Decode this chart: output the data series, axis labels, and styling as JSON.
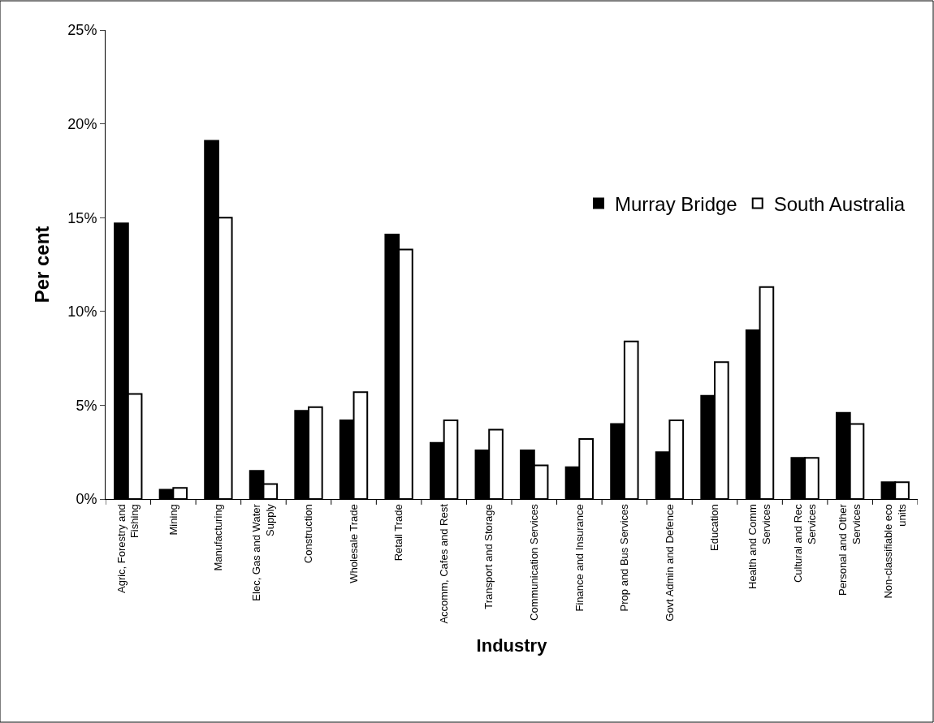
{
  "chart_data": {
    "type": "bar",
    "xlabel": "Industry",
    "ylabel": "Per cent",
    "categories": [
      "Agric, Forestry and Fishing",
      "Mining",
      "Manufacturing",
      "Elec, Gas and Water Supply",
      "Construction",
      "Wholesale Trade",
      "Retail Trade",
      "Accomm, Cafes and Rest",
      "Transport and Storage",
      "Communication Services",
      "Finance and Insurance",
      "Prop and Bus Services",
      "Govt Admin and Defence",
      "Education",
      "Health and Comm Services",
      "Cultural and Rec Services",
      "Personal and Other Services",
      "Non-classifiable eco units"
    ],
    "series": [
      {
        "name": "Murray Bridge",
        "color": "#000000",
        "values": [
          14.7,
          0.5,
          19.1,
          1.5,
          4.7,
          4.2,
          14.1,
          3.0,
          2.6,
          2.6,
          1.7,
          4.0,
          2.5,
          5.5,
          9.0,
          2.2,
          4.6,
          0.9
        ]
      },
      {
        "name": "South Australia",
        "color": "#ffffff",
        "values": [
          5.6,
          0.6,
          15.0,
          0.8,
          4.9,
          5.7,
          13.3,
          4.2,
          3.7,
          1.8,
          3.2,
          8.4,
          4.2,
          7.3,
          11.3,
          2.2,
          4.0,
          0.9
        ]
      }
    ],
    "ylim": [
      0,
      25
    ],
    "yticks": [
      {
        "value": 0,
        "label": "0%"
      },
      {
        "value": 5,
        "label": "5%"
      },
      {
        "value": 10,
        "label": "10%"
      },
      {
        "value": 15,
        "label": "15%"
      },
      {
        "value": 20,
        "label": "20%"
      },
      {
        "value": 25,
        "label": "25%"
      }
    ],
    "legend": "top right"
  }
}
